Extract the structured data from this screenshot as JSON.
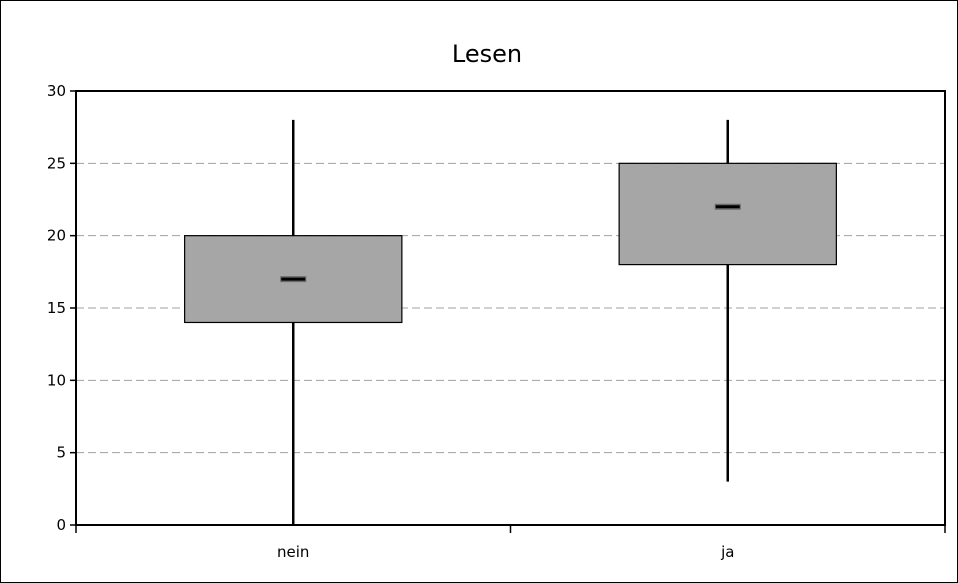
{
  "chart_data": {
    "type": "box",
    "title": "Lesen",
    "xlabel": "",
    "ylabel": "",
    "ylim": [
      0,
      30
    ],
    "yticks": [
      "0",
      "5",
      "10",
      "15",
      "20",
      "25",
      "30"
    ],
    "grid": true,
    "categories": [
      "nein",
      "ja"
    ],
    "boxes": [
      {
        "category": "nein",
        "min": 0,
        "q1": 14,
        "median": 17,
        "q3": 20,
        "max": 28
      },
      {
        "category": "ja",
        "min": 3,
        "q1": 18,
        "median": 22,
        "q3": 25,
        "max": 28
      }
    ],
    "colors": {
      "box_fill": "#a6a6a6",
      "box_stroke": "#000000",
      "grid": "#a0a0a0",
      "whisker": "#000000"
    }
  }
}
